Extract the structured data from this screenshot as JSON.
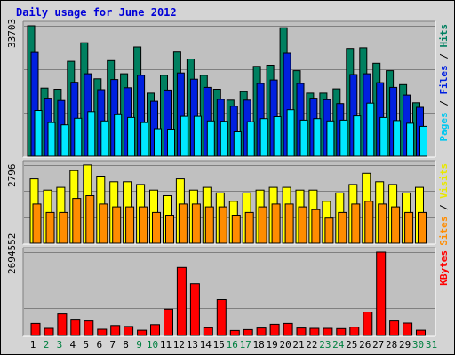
{
  "title": "Daily usage for June 2012",
  "panels": {
    "top": {
      "max_label": "33703",
      "right_label": [
        {
          "text": "Pages",
          "color": "#00c8f0"
        },
        {
          "text": " / ",
          "color": "#000000"
        },
        {
          "text": "Files",
          "color": "#0020e0"
        },
        {
          "text": " / ",
          "color": "#000000"
        },
        {
          "text": "Hits",
          "color": "#008060"
        }
      ]
    },
    "middle": {
      "max_label": "2796",
      "right_label": [
        {
          "text": "Sites",
          "color": "#ff8c00"
        },
        {
          "text": " / ",
          "color": "#000000"
        },
        {
          "text": "Visits",
          "color": "#e8e800"
        }
      ]
    },
    "bottom": {
      "max_label": "2694552",
      "right_label": [
        {
          "text": "KBytes",
          "color": "#ff0000"
        }
      ]
    }
  },
  "colors": {
    "hits": "#008060",
    "files": "#0020e0",
    "pages": "#00e8ff",
    "visits": "#ffff00",
    "sites": "#ff8c00",
    "kbytes": "#ff0000",
    "weekend_label": "#008040",
    "weekday_label": "#000000",
    "title": "#0000d8",
    "plot_bg": "#c0c0c0"
  },
  "chart_data": {
    "type": "bar",
    "title": "Daily usage for June 2012",
    "categories": [
      "1",
      "2",
      "3",
      "4",
      "5",
      "6",
      "7",
      "8",
      "9",
      "10",
      "11",
      "12",
      "13",
      "14",
      "15",
      "16",
      "17",
      "18",
      "19",
      "20",
      "21",
      "22",
      "23",
      "24",
      "25",
      "26",
      "27",
      "28",
      "29",
      "30",
      "31"
    ],
    "weekend_days": [
      "2",
      "3",
      "9",
      "10",
      "16",
      "17",
      "23",
      "24",
      "30",
      "31"
    ],
    "panels": [
      {
        "name": "hits-files-pages",
        "ylim": [
          0,
          33703
        ],
        "series": [
          {
            "name": "Hits",
            "values": [
              33703,
              17600,
              17300,
              24500,
              29300,
              20000,
              24700,
              21300,
              28200,
              16300,
              20900,
              26900,
              25100,
              20900,
              17300,
              14500,
              16700,
              23200,
              23500,
              33200,
              22100,
              16300,
              16300,
              17400,
              27800,
              28000,
              24000,
              22100,
              18500,
              13800,
              0
            ]
          },
          {
            "name": "Files",
            "values": [
              26800,
              15000,
              14400,
              19100,
              21300,
              17200,
              19800,
              17700,
              20900,
              14200,
              17100,
              21500,
              19900,
              17800,
              14700,
              12900,
              14500,
              18800,
              19700,
              26600,
              18800,
              15000,
              14600,
              13600,
              21100,
              21300,
              19000,
              17800,
              15800,
              12600,
              0
            ]
          },
          {
            "name": "Pages",
            "values": [
              11800,
              8700,
              8100,
              9800,
              11500,
              9100,
              10700,
              10000,
              8700,
              7100,
              7000,
              10300,
              10300,
              9100,
              9000,
              6300,
              8900,
              9700,
              10200,
              12000,
              9300,
              9700,
              9100,
              9300,
              10400,
              13700,
              10000,
              9200,
              8500,
              7700,
              0
            ]
          }
        ]
      },
      {
        "name": "visits-sites",
        "ylim": [
          0,
          2796
        ],
        "series": [
          {
            "name": "Visits",
            "values": [
              2300,
              1900,
              2000,
              2600,
              2800,
              2400,
              2200,
              2200,
              2100,
              1900,
              1700,
              2300,
              1900,
              2000,
              1800,
              1500,
              1800,
              1900,
              2000,
              2000,
              1900,
              1900,
              1500,
              1800,
              2100,
              2500,
              2200,
              2100,
              1800,
              2000,
              0
            ]
          },
          {
            "name": "Sites",
            "values": [
              1400,
              1100,
              1100,
              1600,
              1700,
              1400,
              1300,
              1300,
              1300,
              1100,
              1000,
              1400,
              1400,
              1300,
              1300,
              1000,
              1100,
              1300,
              1400,
              1400,
              1300,
              1200,
              900,
              1100,
              1400,
              1500,
              1400,
              1300,
              1100,
              1100,
              0
            ]
          }
        ]
      },
      {
        "name": "kbytes",
        "ylim": [
          0,
          2694552
        ],
        "series": [
          {
            "name": "KBytes",
            "values": [
              390000,
              230000,
              700000,
              500000,
              470000,
              200000,
              320000,
              290000,
              170000,
              350000,
              850000,
              2200000,
              1670000,
              250000,
              1160000,
              160000,
              190000,
              240000,
              360000,
              390000,
              240000,
              230000,
              230000,
              220000,
              270000,
              760000,
              2694552,
              470000,
              400000,
              170000,
              0
            ]
          }
        ]
      }
    ]
  }
}
